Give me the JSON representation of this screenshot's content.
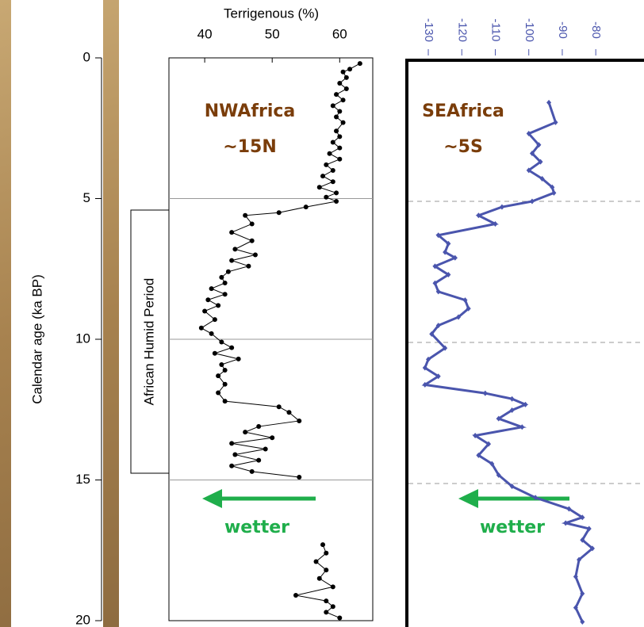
{
  "chart_data": [
    {
      "type": "line",
      "orientation": "vertical",
      "x_label": "Calendar age (ka BP)",
      "y_label": "Terrigenous (%)",
      "xlim": [
        0,
        20
      ],
      "xticks": [
        0,
        5,
        10,
        15,
        20
      ],
      "ylim": [
        34.7,
        64.9
      ],
      "yticks": [
        40,
        50,
        60
      ],
      "reference_lines": [
        5,
        10,
        15
      ],
      "period_label": "African Humid Period",
      "annotations": [
        "NWAfrica",
        "~15N",
        "wetter"
      ],
      "x": [
        0.2,
        0.4,
        0.5,
        0.7,
        0.9,
        1.1,
        1.3,
        1.5,
        1.7,
        1.9,
        2.1,
        2.3,
        2.6,
        2.8,
        3.0,
        3.2,
        3.4,
        3.6,
        3.8,
        4.0,
        4.2,
        4.4,
        4.6,
        4.8,
        4.95,
        5.1,
        5.3,
        5.5,
        5.6,
        5.9,
        6.2,
        6.5,
        6.8,
        7.0,
        7.2,
        7.4,
        7.6,
        7.8,
        8.0,
        8.2,
        8.4,
        8.6,
        8.8,
        9.0,
        9.3,
        9.6,
        9.8,
        10.1,
        10.3,
        10.5,
        10.7,
        10.9,
        11.1,
        11.3,
        11.6,
        11.9,
        12.2,
        12.4,
        12.6,
        12.9,
        13.1,
        13.3,
        13.5,
        13.7,
        13.9,
        14.1,
        14.3,
        14.5,
        14.7,
        14.9,
        16.0,
        17.3,
        17.6,
        17.9,
        18.2,
        18.5,
        18.8,
        19.1,
        19.3,
        19.5,
        19.7,
        19.9
      ],
      "series": [
        {
          "color": "#000000",
          "values": [
            63,
            61.5,
            60.5,
            61,
            60,
            61,
            59.5,
            60.5,
            59,
            60,
            59.5,
            60.5,
            59.5,
            60,
            59,
            60,
            58.5,
            60,
            58,
            59,
            57.5,
            59,
            57,
            59.5,
            58,
            59.5,
            55,
            51,
            46,
            47,
            44,
            47,
            44.5,
            47.5,
            44,
            46.5,
            43.5,
            42.5,
            43,
            41,
            43,
            40.5,
            42,
            40,
            41.5,
            39.5,
            41,
            42.5,
            44,
            41.5,
            45,
            42.5,
            43,
            42,
            43,
            42,
            43,
            51,
            52.5,
            54,
            48,
            46,
            50,
            44,
            49,
            44.5,
            48,
            44,
            47,
            54,
            null,
            57.5,
            58,
            56.5,
            58,
            57,
            59,
            53.5,
            58,
            59,
            58,
            60
          ]
        }
      ]
    },
    {
      "type": "line",
      "orientation": "vertical",
      "xlim": [
        0,
        20
      ],
      "ylim": [
        -136.4,
        -65.6
      ],
      "yticks": [
        -130,
        -120,
        -110,
        -100,
        -90,
        -80
      ],
      "reference_lines": [
        5,
        10,
        15
      ],
      "annotations": [
        "SEAfrica",
        "~5S",
        "wetter"
      ],
      "x": [
        1.5,
        2.2,
        2.6,
        3.0,
        3.3,
        3.6,
        3.9,
        4.2,
        4.5,
        4.7,
        5.0,
        5.2,
        5.5,
        5.8,
        6.2,
        6.5,
        6.8,
        7.0,
        7.3,
        7.6,
        7.9,
        8.2,
        8.5,
        8.8,
        9.1,
        9.4,
        9.7,
        10.2,
        10.6,
        10.9,
        11.2,
        11.5,
        11.8,
        12.0,
        12.2,
        12.4,
        12.7,
        13.0,
        13.3,
        13.6,
        14.0,
        14.3,
        14.7,
        15.1,
        15.5,
        15.9,
        16.2,
        16.4,
        16.6,
        17.0,
        17.3,
        17.7,
        18.3,
        18.9,
        19.4,
        19.9
      ],
      "series": [
        {
          "color": "#4a55ad",
          "values": [
            -94,
            -92,
            -100,
            -97,
            -99,
            -96.5,
            -100,
            -96,
            -93,
            -92.5,
            -99,
            -108,
            -115,
            -110,
            -127,
            -124,
            -125,
            -122,
            -128,
            -124,
            -128,
            -127,
            -119,
            -118,
            -121,
            -127,
            -129,
            -125,
            -130,
            -131,
            -127,
            -131,
            -113,
            -105,
            -101,
            -105,
            -109,
            -102,
            -116,
            -112,
            -115,
            -111,
            -109,
            -105,
            -98,
            -88,
            -84,
            -89,
            -82,
            -84,
            -81,
            -85,
            -86,
            -84,
            -86,
            -84
          ]
        }
      ]
    }
  ]
}
